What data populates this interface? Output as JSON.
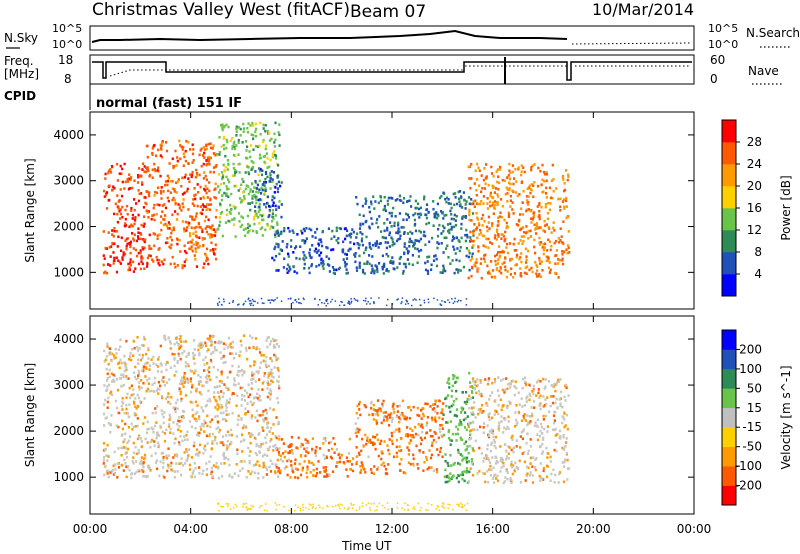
{
  "header": {
    "station": "Christmas Valley West (fitACF)",
    "beam": "Beam 07",
    "date": "10/Mar/2014"
  },
  "time_axis": {
    "label": "Time UT",
    "ticks": [
      "00:00",
      "04:00",
      "08:00",
      "12:00",
      "16:00",
      "20:00",
      "00:00"
    ]
  },
  "noise_panel": {
    "left_label": "N.Sky",
    "right_label": "N.Search",
    "y_ticks": [
      "10^5",
      "10^0"
    ]
  },
  "freq_panel": {
    "left_label_1": "Freq.",
    "left_label_2": "[MHz]",
    "right_label": "Nave",
    "left_ticks": [
      "18",
      "8"
    ],
    "right_ticks": [
      "60",
      "0"
    ]
  },
  "cpid": {
    "label": "CPID",
    "value": "normal (fast) 151 IF"
  },
  "colors": {
    "power_scale": [
      "#0000ff",
      "#2050b8",
      "#2e8b57",
      "#6ac44a",
      "#ffd000",
      "#ff9a00",
      "#ff5a00",
      "#ff0000"
    ],
    "velocity_scale": [
      "#ff0000",
      "#ff5a00",
      "#ff9a00",
      "#ffd000",
      "#c0c0c0",
      "#6ac44a",
      "#2e8b57",
      "#2050b8",
      "#0000ff"
    ],
    "ground_scatter": "#c8c8c0"
  },
  "chart_data": [
    {
      "type": "heatmap",
      "panel": "power",
      "ylabel": "Slant Range [km]",
      "yticks": [
        1000,
        2000,
        3000,
        4000
      ],
      "ylim": [
        200,
        4500
      ],
      "xlim_hours": [
        0,
        24
      ],
      "colorbar": {
        "label": "Power [dB]",
        "ticks": [
          "4",
          "8",
          "12",
          "16",
          "20",
          "24",
          "28"
        ]
      },
      "regions": [
        {
          "x": [
            0.5,
            2.2
          ],
          "y": [
            1000,
            3400
          ],
          "level": 28
        },
        {
          "x": [
            2.2,
            5.0
          ],
          "y": [
            1100,
            3900
          ],
          "level": 26
        },
        {
          "x": [
            5.0,
            7.5
          ],
          "y": [
            1800,
            4300
          ],
          "level": 14
        },
        {
          "x": [
            6.5,
            7.6
          ],
          "y": [
            2200,
            3300
          ],
          "level": 6
        },
        {
          "x": [
            7.2,
            10.5
          ],
          "y": [
            1000,
            2000
          ],
          "level": 6
        },
        {
          "x": [
            10.5,
            14.0
          ],
          "y": [
            1000,
            2700
          ],
          "level": 7
        },
        {
          "x": [
            14.0,
            15.2
          ],
          "y": [
            1000,
            2800
          ],
          "level": 8
        },
        {
          "x": [
            15.0,
            19.0
          ],
          "y": [
            900,
            3400
          ],
          "level": 24
        }
      ]
    },
    {
      "type": "heatmap",
      "panel": "velocity",
      "ylabel": "Slant Range [km]",
      "yticks": [
        1000,
        2000,
        3000,
        4000
      ],
      "ylim": [
        200,
        4500
      ],
      "xlim_hours": [
        0,
        24
      ],
      "colorbar": {
        "label": "Velocity [m s^-1]",
        "ticks": [
          "200",
          "100",
          "50",
          "15",
          "-15",
          "-50",
          "-100",
          "-200"
        ]
      },
      "regions": [
        {
          "x": [
            0.5,
            7.5
          ],
          "y": [
            1000,
            4100
          ],
          "class": "ground scatter / mixed"
        },
        {
          "x": [
            7.3,
            10.5
          ],
          "y": [
            1000,
            1900
          ],
          "class": "negative velocities"
        },
        {
          "x": [
            10.5,
            14.0
          ],
          "y": [
            1100,
            2700
          ],
          "class": "negative velocities"
        },
        {
          "x": [
            14.0,
            15.2
          ],
          "y": [
            900,
            3300
          ],
          "class": "positive velocities"
        },
        {
          "x": [
            15.0,
            19.0
          ],
          "y": [
            900,
            3200
          ],
          "class": "ground scatter / mixed"
        }
      ]
    }
  ]
}
